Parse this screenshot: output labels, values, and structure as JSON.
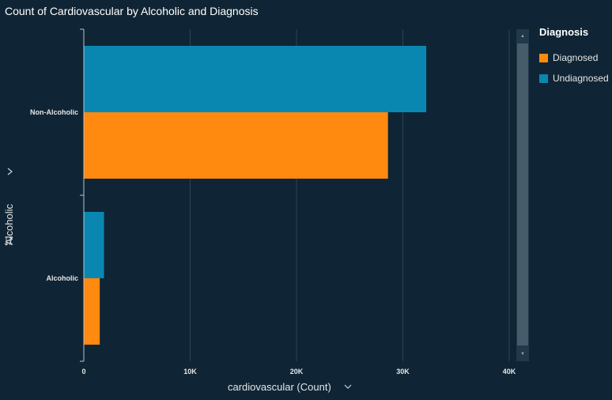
{
  "chart_data": {
    "type": "bar",
    "orientation": "horizontal",
    "title": "Count of Cardiovascular by Alcoholic and Diagnosis",
    "xlabel": "cardiovascular (Count)",
    "ylabel": "Alcoholic",
    "categories": [
      "Non-Alcoholic",
      "Alcoholic"
    ],
    "series": [
      {
        "name": "Undiagnosed",
        "color": "#0a87b0",
        "values": [
          32200,
          1900
        ]
      },
      {
        "name": "Diagnosed",
        "color": "#ff8a0f",
        "values": [
          28600,
          1500
        ]
      }
    ],
    "xlim": [
      0,
      40000
    ],
    "xticks": [
      0,
      10000,
      20000,
      30000,
      40000
    ],
    "xtick_labels": [
      "0",
      "10K",
      "20K",
      "30K",
      "40K"
    ],
    "grid": "vertical",
    "legend_title": "Diagnosis",
    "legend": [
      {
        "label": "Diagnosed",
        "color": "#ff8a0f"
      },
      {
        "label": "Undiagnosed",
        "color": "#0a87b0"
      }
    ],
    "legend_position": "right"
  }
}
